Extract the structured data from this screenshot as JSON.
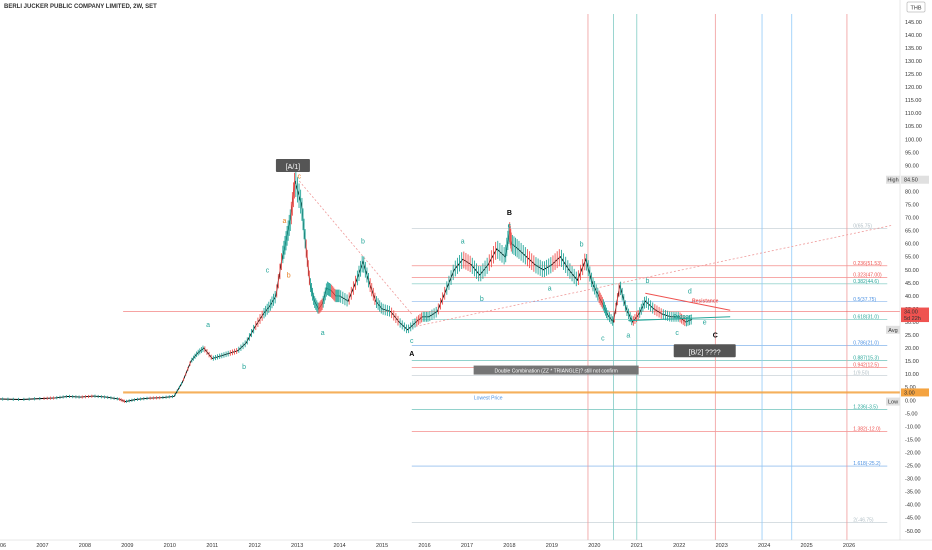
{
  "chart_data": {
    "type": "line",
    "title": "BERLI JUCKER PUBLIC COMPANY LIMITED, 2W, SET",
    "currency": "THB",
    "ylim": [
      -52,
      148
    ],
    "y_ticks": [
      -50,
      -45,
      -40,
      -35,
      -30,
      -25,
      -20,
      -15,
      -10,
      -5,
      0,
      5,
      10,
      15,
      20,
      25,
      30,
      35,
      40,
      45,
      50,
      55,
      60,
      65,
      70,
      75,
      80,
      85,
      90,
      95,
      100,
      105,
      110,
      115,
      120,
      125,
      130,
      135,
      140,
      145
    ],
    "xlim": [
      2006.0,
      2027.2
    ],
    "x_ticks": [
      "2006",
      "2007",
      "2008",
      "2009",
      "2010",
      "2011",
      "2012",
      "2013",
      "2014",
      "2015",
      "2016",
      "2017",
      "2018",
      "2019",
      "2020",
      "2021",
      "2022",
      "2023",
      "2024",
      "2025",
      "2026"
    ],
    "series": [
      {
        "x": [
          2006.0,
          2006.5,
          2007.0,
          2007.3,
          2007.6,
          2007.9,
          2008.2,
          2008.5,
          2008.8,
          2008.95,
          2009.2,
          2009.5,
          2009.8,
          2010.1,
          2010.3,
          2010.5,
          2010.65,
          2010.8,
          2011.0,
          2011.2,
          2011.4,
          2011.6,
          2011.8,
          2012.0,
          2012.2,
          2012.35,
          2012.5,
          2012.65,
          2012.75,
          2012.85,
          2012.95,
          2013.1,
          2013.2,
          2013.3,
          2013.4,
          2013.5,
          2013.6,
          2013.7,
          2013.8,
          2013.9,
          2014.0,
          2014.2,
          2014.4,
          2014.55,
          2014.7,
          2014.85,
          2015.0,
          2015.2,
          2015.4,
          2015.6,
          2015.8,
          2015.95,
          2016.1,
          2016.3,
          2016.5,
          2016.7,
          2016.9,
          2017.1,
          2017.3,
          2017.5,
          2017.7,
          2017.9,
          2018.0,
          2018.05,
          2018.2,
          2018.4,
          2018.6,
          2018.8,
          2019.0,
          2019.2,
          2019.4,
          2019.6,
          2019.8,
          2019.95,
          2020.1,
          2020.2,
          2020.3,
          2020.45,
          2020.6,
          2020.75,
          2020.9,
          2021.05,
          2021.2,
          2021.4,
          2021.6,
          2021.8,
          2022.0,
          2022.15,
          2022.3
        ],
        "values": [
          0.5,
          0.3,
          0.7,
          0.9,
          1.5,
          1.2,
          1.6,
          1.2,
          0.5,
          -0.5,
          0.3,
          0.8,
          1.0,
          1.5,
          7,
          15,
          18,
          20,
          16,
          17,
          18,
          19,
          22,
          28,
          33,
          36,
          40,
          55,
          62,
          70,
          84,
          75,
          60,
          45,
          38,
          35,
          37,
          43,
          42,
          40,
          40,
          38,
          46,
          53,
          45,
          38,
          35,
          34,
          30,
          27,
          30,
          32,
          32,
          34,
          42,
          50,
          54,
          52,
          48,
          52,
          58,
          55,
          65,
          60,
          58,
          55,
          52,
          50,
          52,
          55,
          50,
          46,
          54,
          45,
          40,
          37,
          33,
          30,
          44,
          35,
          30,
          33,
          38,
          35,
          33,
          32,
          32,
          30,
          31
        ]
      }
    ],
    "wave_labels": [
      {
        "text": "[A/1]",
        "x": 2012.9,
        "y": 89,
        "color": "#ffffff",
        "boxed": true
      },
      {
        "text": "c",
        "x": 2013.05,
        "y": 85,
        "color": "#e67e22"
      },
      {
        "text": "a",
        "x": 2012.7,
        "y": 68,
        "color": "#e67e22"
      },
      {
        "text": "b",
        "x": 2012.8,
        "y": 47,
        "color": "#e67e22"
      },
      {
        "text": "c",
        "x": 2012.3,
        "y": 49,
        "color": "#26a69a"
      },
      {
        "text": "a",
        "x": 2010.9,
        "y": 28,
        "color": "#26a69a"
      },
      {
        "text": "b",
        "x": 2011.75,
        "y": 12,
        "color": "#26a69a"
      },
      {
        "text": "b",
        "x": 2014.55,
        "y": 60,
        "color": "#26a69a"
      },
      {
        "text": "a",
        "x": 2013.6,
        "y": 25,
        "color": "#26a69a"
      },
      {
        "text": "c",
        "x": 2015.7,
        "y": 22,
        "color": "#26a69a"
      },
      {
        "text": "A",
        "x": 2015.7,
        "y": 17,
        "color": "#000000",
        "bold": true
      },
      {
        "text": "B",
        "x": 2018.0,
        "y": 71,
        "color": "#000000",
        "bold": true
      },
      {
        "text": "c",
        "x": 2018.0,
        "y": 66,
        "color": "#26a69a"
      },
      {
        "text": "a",
        "x": 2016.9,
        "y": 60,
        "color": "#26a69a"
      },
      {
        "text": "b",
        "x": 2017.35,
        "y": 38,
        "color": "#26a69a"
      },
      {
        "text": "a",
        "x": 2018.95,
        "y": 42,
        "color": "#26a69a"
      },
      {
        "text": "b",
        "x": 2019.7,
        "y": 59,
        "color": "#26a69a"
      },
      {
        "text": "c",
        "x": 2020.2,
        "y": 23,
        "color": "#26a69a"
      },
      {
        "text": "a",
        "x": 2020.8,
        "y": 24,
        "color": "#26a69a"
      },
      {
        "text": "b",
        "x": 2021.25,
        "y": 45,
        "color": "#26a69a"
      },
      {
        "text": "c",
        "x": 2021.95,
        "y": 25,
        "color": "#26a69a"
      },
      {
        "text": "d",
        "x": 2022.25,
        "y": 41,
        "color": "#26a69a"
      },
      {
        "text": "e",
        "x": 2022.6,
        "y": 29,
        "color": "#26a69a"
      },
      {
        "text": "C",
        "x": 2022.85,
        "y": 24,
        "color": "#000000",
        "bold": true
      },
      {
        "text": "[B/2] ????",
        "x": 2022.6,
        "y": 18,
        "color": "#ffffff",
        "boxed": true
      }
    ],
    "fib_levels": [
      {
        "label": "0(65.75)",
        "y": 65.75,
        "color": "#b0bec5"
      },
      {
        "label": "0.236(51.53)",
        "y": 51.53,
        "color": "#ef5350"
      },
      {
        "label": "0.323(47.00)",
        "y": 47.0,
        "color": "#ef5350"
      },
      {
        "label": "0.382(44.6)",
        "y": 44.6,
        "color": "#26a69a"
      },
      {
        "label": "0.5(37.75)",
        "y": 37.75,
        "color": "#4a90e2"
      },
      {
        "label": "0.618(31.0)",
        "y": 31.0,
        "color": "#26a69a"
      },
      {
        "label": "0.786(21.0)",
        "y": 21.0,
        "color": "#4a90e2"
      },
      {
        "label": "0.887(15.3)",
        "y": 15.3,
        "color": "#26a69a"
      },
      {
        "label": "0.942(12.5)",
        "y": 12.5,
        "color": "#ef5350"
      },
      {
        "label": "1(9.50)",
        "y": 9.5,
        "color": "#b0bec5"
      },
      {
        "label": "1.236(-3.5)",
        "y": -3.5,
        "color": "#26a69a"
      },
      {
        "label": "1.382(-12.0)",
        "y": -12.0,
        "color": "#ef5350"
      },
      {
        "label": "1.618(-25.2)",
        "y": -25.2,
        "color": "#4a90e2"
      },
      {
        "label": "2(-46.75)",
        "y": -46.75,
        "color": "#b0bec5"
      }
    ],
    "vertical_lines": [
      {
        "x": 2019.85,
        "color": "#ef9a9a"
      },
      {
        "x": 2020.45,
        "color": "#80cbc4"
      },
      {
        "x": 2021.0,
        "color": "#80cbc4"
      },
      {
        "x": 2022.85,
        "color": "#ef9a9a"
      },
      {
        "x": 2023.95,
        "color": "#90caf9"
      },
      {
        "x": 2024.65,
        "color": "#90caf9"
      },
      {
        "x": 2025.95,
        "color": "#ef9a9a"
      }
    ],
    "horizontal_lines": [
      {
        "y": 3.0,
        "color": "#f4a340",
        "label": "Lowest Price",
        "label_x": 2017.5
      },
      {
        "y": 34.0,
        "color": "#ef5350"
      }
    ],
    "trendlines": [
      {
        "from": [
          2021.2,
          41
        ],
        "to": [
          2023.2,
          34.5
        ],
        "color": "#ef5350",
        "label": "Resistance",
        "label_x": 2022.3,
        "label_y": 37.5
      },
      {
        "from": [
          2020.8,
          30.5
        ],
        "to": [
          2023.2,
          32
        ],
        "color": "#26a69a",
        "label": "Support",
        "label_x": 2021.85,
        "label_y": 31.5
      }
    ],
    "dotted_lines": [
      {
        "from": [
          2013.05,
          84
        ],
        "to": [
          2015.7,
          33
        ],
        "color": "#ef9a9a"
      },
      {
        "from": [
          2015.7,
          28
        ],
        "to": [
          2027.0,
          67
        ],
        "color": "#ef9a9a"
      }
    ],
    "annotation": {
      "text": "Double Combination (ZZ * TRIANGLE)? still not confirm",
      "x": 2019.1,
      "y": 11
    },
    "right_badges": [
      {
        "label": "High",
        "value": "84.50",
        "y": 84.5,
        "color": "#e0e0e0",
        "text": "#333"
      },
      {
        "label": "",
        "value": "34.00",
        "y": 34.0,
        "color": "#ef5350",
        "text": "#ffffff"
      },
      {
        "label": "",
        "value": "5d 22h",
        "y": 31.5,
        "color": "#ef5350",
        "text": "#ffffff"
      },
      {
        "label": "Avg",
        "value": "",
        "y": 27,
        "color": "#e0e0e0",
        "text": "#333"
      },
      {
        "label": "",
        "value": "3.00",
        "y": 3.0,
        "color": "#f4a340",
        "text": "#ffffff"
      },
      {
        "label": "Low",
        "value": "",
        "y": -0.5,
        "color": "#e0e0e0",
        "text": "#333"
      }
    ]
  }
}
